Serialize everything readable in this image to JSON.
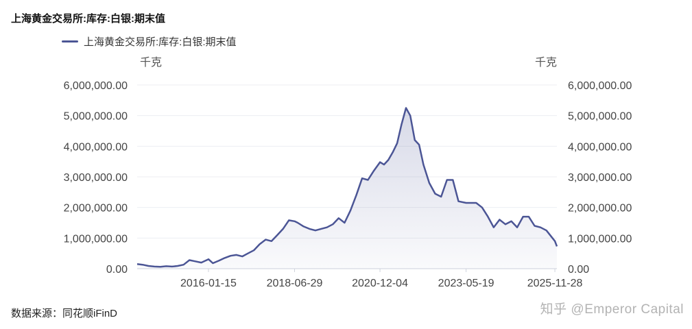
{
  "chart_data": {
    "type": "area",
    "title": "上海黄金交易所:库存:白银:期末值",
    "legend": [
      "上海黄金交易所:库存:白银:期末值"
    ],
    "y_unit_left": "千克",
    "y_unit_right": "千克",
    "ylim": [
      0,
      6000000
    ],
    "yticks": [
      "0.00",
      "1,000,000.00",
      "2,000,000.00",
      "3,000,000.00",
      "4,000,000.00",
      "5,000,000.00",
      "6,000,000.00"
    ],
    "xticks": [
      "2016-01-15",
      "2018-06-29",
      "2020-12-04",
      "2023-05-19",
      "2025-11-28"
    ],
    "x_range": [
      "2014-01-03",
      "2025-12-19"
    ],
    "grid": true,
    "legend_position": "top-left",
    "series": [
      {
        "name": "上海黄金交易所:库存:白银:期末值",
        "color": "#4b5595",
        "points": [
          [
            "2014-01-03",
            150000
          ],
          [
            "2014-03-01",
            130000
          ],
          [
            "2014-05-01",
            90000
          ],
          [
            "2014-07-01",
            70000
          ],
          [
            "2014-09-01",
            60000
          ],
          [
            "2014-11-01",
            80000
          ],
          [
            "2015-01-01",
            70000
          ],
          [
            "2015-03-01",
            90000
          ],
          [
            "2015-05-01",
            130000
          ],
          [
            "2015-07-01",
            280000
          ],
          [
            "2015-09-01",
            240000
          ],
          [
            "2015-11-01",
            200000
          ],
          [
            "2016-01-15",
            310000
          ],
          [
            "2016-03-01",
            180000
          ],
          [
            "2016-05-01",
            260000
          ],
          [
            "2016-07-01",
            350000
          ],
          [
            "2016-09-01",
            420000
          ],
          [
            "2016-11-01",
            450000
          ],
          [
            "2017-01-01",
            400000
          ],
          [
            "2017-03-01",
            500000
          ],
          [
            "2017-05-01",
            600000
          ],
          [
            "2017-07-01",
            800000
          ],
          [
            "2017-09-01",
            950000
          ],
          [
            "2017-11-01",
            900000
          ],
          [
            "2018-01-01",
            1100000
          ],
          [
            "2018-03-01",
            1300000
          ],
          [
            "2018-05-01",
            1580000
          ],
          [
            "2018-06-29",
            1550000
          ],
          [
            "2018-08-01",
            1500000
          ],
          [
            "2018-10-01",
            1380000
          ],
          [
            "2018-12-01",
            1300000
          ],
          [
            "2019-02-01",
            1250000
          ],
          [
            "2019-04-01",
            1300000
          ],
          [
            "2019-06-01",
            1350000
          ],
          [
            "2019-08-01",
            1450000
          ],
          [
            "2019-10-01",
            1650000
          ],
          [
            "2019-12-01",
            1500000
          ],
          [
            "2020-02-01",
            1900000
          ],
          [
            "2020-04-01",
            2400000
          ],
          [
            "2020-06-01",
            2950000
          ],
          [
            "2020-08-01",
            2900000
          ],
          [
            "2020-10-01",
            3200000
          ],
          [
            "2020-12-04",
            3480000
          ],
          [
            "2021-01-15",
            3400000
          ],
          [
            "2021-03-01",
            3550000
          ],
          [
            "2021-04-15",
            3800000
          ],
          [
            "2021-06-01",
            4100000
          ],
          [
            "2021-07-15",
            4700000
          ],
          [
            "2021-09-01",
            5250000
          ],
          [
            "2021-10-15",
            5000000
          ],
          [
            "2021-12-01",
            4200000
          ],
          [
            "2022-01-15",
            4050000
          ],
          [
            "2022-03-01",
            3400000
          ],
          [
            "2022-05-01",
            2800000
          ],
          [
            "2022-07-01",
            2450000
          ],
          [
            "2022-09-01",
            2350000
          ],
          [
            "2022-11-01",
            2900000
          ],
          [
            "2023-01-01",
            2900000
          ],
          [
            "2023-03-01",
            2200000
          ],
          [
            "2023-05-19",
            2150000
          ],
          [
            "2023-07-01",
            2150000
          ],
          [
            "2023-09-01",
            2150000
          ],
          [
            "2023-11-01",
            2000000
          ],
          [
            "2024-01-01",
            1700000
          ],
          [
            "2024-03-01",
            1350000
          ],
          [
            "2024-05-01",
            1600000
          ],
          [
            "2024-07-01",
            1450000
          ],
          [
            "2024-09-01",
            1550000
          ],
          [
            "2024-11-01",
            1350000
          ],
          [
            "2025-01-01",
            1700000
          ],
          [
            "2025-03-01",
            1700000
          ],
          [
            "2025-05-01",
            1400000
          ],
          [
            "2025-07-01",
            1350000
          ],
          [
            "2025-09-01",
            1250000
          ],
          [
            "2025-11-28",
            900000
          ],
          [
            "2025-12-19",
            730000
          ]
        ]
      }
    ]
  },
  "source_label": "数据来源：同花顺iFinD",
  "watermark": "知乎 @Emperor Capital"
}
